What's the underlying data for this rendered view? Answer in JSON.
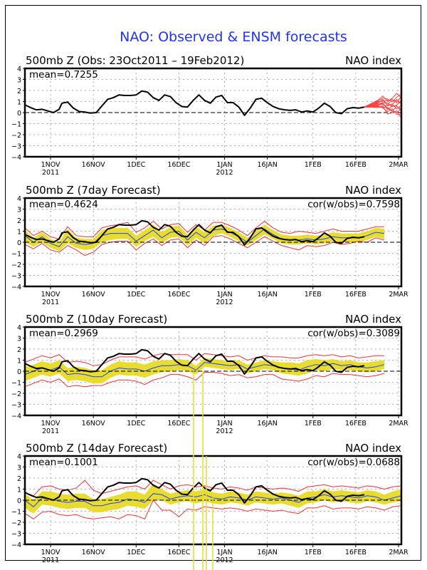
{
  "chart_data": {
    "type": "line",
    "title": "NAO: Observed & ENSM forecasts",
    "x_unit": "days since 23Oct2011",
    "xlim": [
      0,
      132
    ],
    "ylim": [
      -4,
      4
    ],
    "yticks": [
      4,
      3,
      2,
      1,
      0,
      -1,
      -2,
      -3,
      -4
    ],
    "xticks": [
      {
        "day": 9,
        "label": "1NOV",
        "sublabel": "2011"
      },
      {
        "day": 24,
        "label": "16NOV",
        "sublabel": ""
      },
      {
        "day": 39,
        "label": "1DEC",
        "sublabel": ""
      },
      {
        "day": 54,
        "label": "16DEC",
        "sublabel": ""
      },
      {
        "day": 70,
        "label": "1JAN",
        "sublabel": "2012"
      },
      {
        "day": 85,
        "label": "16JAN",
        "sublabel": ""
      },
      {
        "day": 101,
        "label": "1FEB",
        "sublabel": ""
      },
      {
        "day": 116,
        "label": "16FEB",
        "sublabel": ""
      },
      {
        "day": 131,
        "label": "2MAR",
        "sublabel": ""
      }
    ],
    "grid": true,
    "colors": {
      "observed": "#000000",
      "ensemble_mean": "#2244ee",
      "spread": "#e8dc30",
      "bounds": "#ee3333",
      "members": "#ff4444",
      "title": "#2233ee"
    },
    "observed": {
      "x": [
        0,
        2,
        4,
        6,
        8,
        10,
        12,
        13,
        15,
        17,
        19,
        21,
        23,
        25,
        27,
        29,
        31,
        33,
        35,
        37,
        39,
        41,
        43,
        45,
        47,
        49,
        51,
        53,
        55,
        57,
        59,
        61,
        63,
        65,
        67,
        69,
        71,
        73,
        75,
        77,
        79,
        81,
        83,
        85,
        87,
        89,
        91,
        93,
        95,
        97,
        99,
        101,
        103,
        105,
        107,
        109,
        111,
        113,
        115,
        117,
        119
      ],
      "y": [
        0.7,
        0.45,
        0.25,
        0.3,
        0.15,
        0.0,
        0.3,
        0.85,
        0.95,
        0.4,
        0.1,
        0.05,
        -0.05,
        0.0,
        0.6,
        1.2,
        1.35,
        1.6,
        1.55,
        1.55,
        1.6,
        1.95,
        1.85,
        1.35,
        1.1,
        1.6,
        1.45,
        0.9,
        0.55,
        0.5,
        1.1,
        1.6,
        1.1,
        0.85,
        1.4,
        1.55,
        0.9,
        0.9,
        0.5,
        -0.25,
        0.4,
        1.2,
        1.3,
        0.9,
        0.55,
        0.35,
        0.25,
        0.2,
        0.25,
        0.05,
        0.15,
        0.05,
        0.4,
        0.85,
        0.55,
        0.0,
        -0.1,
        0.35,
        0.45,
        0.4,
        0.5
      ]
    },
    "panels": [
      {
        "title": "500mb Z (Obs: 23Oct2011 – 19Feb2012)",
        "right_label": "NAO index",
        "mean_label": "mean=0.7255",
        "cor_label": "",
        "kind": "observed",
        "forecast_members": {
          "start_day": 119,
          "end_day": 132,
          "count": 12,
          "start_value": 0.5,
          "end_range": [
            -0.2,
            1.6
          ]
        }
      },
      {
        "title": "500mb Z (7day Forecast)",
        "right_label": "NAO index",
        "mean_label": "mean=0.4624",
        "cor_label": "cor(w/obs)=0.7598",
        "kind": "forecast",
        "x": [
          0,
          3,
          6,
          9,
          12,
          15,
          18,
          21,
          24,
          27,
          30,
          33,
          36,
          39,
          42,
          45,
          48,
          51,
          54,
          57,
          60,
          63,
          66,
          69,
          72,
          75,
          78,
          81,
          84,
          87,
          90,
          93,
          96,
          99,
          102,
          105,
          108,
          111,
          114,
          117,
          120,
          123,
          126
        ],
        "mean": [
          0.6,
          0.0,
          0.5,
          -0.1,
          -0.4,
          0.5,
          -0.1,
          -0.2,
          -0.1,
          0.6,
          0.8,
          0.8,
          0.8,
          0.1,
          0.6,
          1.1,
          0.4,
          0.9,
          1.0,
          0.2,
          0.9,
          0.4,
          1.1,
          1.2,
          0.9,
          0.5,
          0.0,
          0.6,
          1.2,
          0.7,
          0.3,
          0.2,
          0.2,
          0.3,
          0.2,
          0.3,
          0.5,
          0.4,
          0.4,
          0.4,
          0.6,
          0.9,
          0.8
        ],
        "spread_low": [
          0.0,
          -0.4,
          0.0,
          -0.5,
          -0.8,
          -0.1,
          -0.5,
          -0.7,
          -0.6,
          0.0,
          0.2,
          0.3,
          0.3,
          -0.4,
          0.1,
          0.5,
          -0.1,
          0.4,
          0.5,
          -0.3,
          0.4,
          -0.1,
          0.6,
          0.8,
          0.5,
          0.1,
          -0.3,
          0.2,
          0.7,
          0.3,
          -0.1,
          -0.2,
          -0.2,
          -0.1,
          -0.2,
          -0.1,
          0.1,
          0.0,
          0.0,
          0.0,
          0.2,
          0.5,
          0.3
        ],
        "spread_high": [
          1.1,
          0.4,
          0.9,
          0.3,
          0.0,
          1.2,
          0.4,
          0.3,
          0.3,
          1.1,
          1.3,
          1.3,
          1.3,
          0.6,
          1.1,
          1.6,
          0.9,
          1.4,
          1.5,
          0.7,
          1.4,
          0.9,
          1.5,
          1.6,
          1.3,
          0.9,
          0.4,
          1.0,
          1.6,
          1.1,
          0.7,
          0.6,
          0.6,
          0.7,
          0.6,
          0.7,
          0.9,
          0.8,
          0.8,
          0.8,
          1.0,
          1.3,
          1.2
        ],
        "lower": [
          -0.2,
          -0.6,
          -0.1,
          -0.7,
          -0.9,
          -0.3,
          -0.7,
          -1.2,
          -0.9,
          -0.2,
          0.0,
          0.1,
          0.1,
          -0.7,
          -0.1,
          0.3,
          -0.3,
          0.2,
          0.3,
          -0.5,
          0.2,
          -0.3,
          0.5,
          0.6,
          0.3,
          -0.1,
          -0.5,
          0.0,
          0.5,
          0.1,
          -0.3,
          -0.5,
          -0.7,
          -0.3,
          -0.4,
          -0.3,
          0.0,
          -0.2,
          -0.1,
          0.1,
          0.0,
          0.4,
          0.2
        ],
        "upper": [
          1.3,
          0.6,
          1.0,
          0.5,
          0.3,
          1.4,
          0.6,
          0.5,
          0.5,
          1.3,
          1.5,
          1.6,
          1.8,
          0.9,
          1.3,
          1.9,
          1.2,
          1.6,
          1.7,
          0.9,
          1.6,
          1.1,
          1.8,
          1.8,
          1.5,
          1.1,
          0.6,
          1.3,
          1.9,
          1.3,
          0.9,
          0.8,
          1.0,
          0.9,
          0.8,
          1.0,
          1.2,
          1.0,
          1.0,
          1.0,
          1.2,
          1.4,
          1.4
        ]
      },
      {
        "title": "500mb Z (10day Forecast)",
        "right_label": "NAO index",
        "mean_label": "mean=0.2969",
        "cor_label": "cor(w/obs)=0.3089",
        "kind": "forecast",
        "x": [
          0,
          3,
          6,
          9,
          12,
          15,
          18,
          21,
          24,
          27,
          30,
          33,
          36,
          39,
          42,
          45,
          48,
          51,
          54,
          57,
          60,
          63,
          66,
          69,
          72,
          75,
          78,
          81,
          84,
          87,
          90,
          93,
          96,
          99,
          102,
          105,
          108,
          111,
          114,
          117,
          120,
          123,
          126
        ],
        "mean": [
          -0.3,
          0.0,
          0.3,
          0.1,
          0.4,
          -0.3,
          -0.2,
          -0.3,
          -0.5,
          -0.5,
          0.0,
          0.3,
          0.2,
          0.2,
          0.0,
          0.3,
          0.5,
          0.5,
          0.6,
          0.5,
          0.1,
          0.8,
          0.7,
          0.6,
          0.5,
          0.6,
          0.2,
          0.4,
          0.6,
          0.5,
          0.3,
          0.2,
          0.1,
          0.4,
          0.6,
          0.5,
          0.7,
          0.5,
          0.6,
          0.4,
          0.3,
          0.4,
          0.6
        ],
        "spread_low": [
          -0.9,
          -0.6,
          -0.3,
          -0.5,
          -0.2,
          -0.9,
          -0.8,
          -0.9,
          -1.1,
          -1.1,
          -0.6,
          -0.3,
          -0.4,
          -0.4,
          -0.6,
          -0.3,
          -0.1,
          0.0,
          0.1,
          0.0,
          -0.3,
          0.4,
          0.3,
          0.2,
          0.1,
          0.2,
          -0.2,
          0.0,
          0.2,
          0.1,
          -0.2,
          -0.3,
          -0.4,
          -0.2,
          0.1,
          0.0,
          0.2,
          0.1,
          0.1,
          0.0,
          -0.1,
          0.0,
          0.2
        ],
        "spread_high": [
          0.4,
          0.6,
          0.9,
          0.7,
          1.0,
          0.3,
          0.4,
          0.3,
          0.1,
          0.1,
          0.6,
          0.9,
          0.8,
          0.8,
          0.6,
          0.9,
          1.0,
          1.0,
          1.1,
          1.0,
          0.5,
          1.2,
          1.1,
          1.0,
          0.9,
          1.0,
          0.6,
          0.8,
          1.0,
          0.9,
          0.8,
          0.8,
          0.7,
          1.0,
          1.1,
          1.0,
          1.1,
          0.9,
          1.0,
          0.8,
          0.8,
          0.9,
          1.0
        ],
        "lower": [
          -1.4,
          -1.1,
          -0.8,
          -1.0,
          -0.7,
          -1.4,
          -1.3,
          -1.4,
          -1.3,
          -1.3,
          -1.0,
          -0.8,
          -0.8,
          -0.9,
          -1.2,
          -0.8,
          -0.6,
          -0.3,
          -0.3,
          -0.5,
          -0.8,
          -0.1,
          -0.1,
          -0.2,
          -0.4,
          -0.3,
          -0.6,
          -0.5,
          -0.3,
          -0.3,
          -0.7,
          -0.8,
          -0.9,
          -0.7,
          -0.4,
          -0.5,
          -0.2,
          -0.3,
          -0.3,
          -0.4,
          -0.5,
          -0.4,
          -0.2
        ],
        "upper": [
          0.8,
          1.1,
          1.4,
          1.2,
          1.5,
          0.8,
          0.9,
          0.8,
          0.5,
          0.6,
          1.0,
          1.3,
          1.3,
          1.3,
          1.1,
          1.4,
          1.6,
          1.5,
          1.5,
          1.5,
          1.0,
          1.6,
          1.5,
          1.4,
          1.3,
          1.4,
          1.0,
          1.2,
          1.4,
          1.3,
          1.3,
          1.2,
          1.2,
          1.4,
          1.5,
          1.4,
          1.5,
          1.3,
          1.4,
          1.2,
          1.3,
          1.4,
          1.4
        ]
      },
      {
        "title": "500mb Z (14day Forecast)",
        "right_label": "NAO index",
        "mean_label": "mean=0.1001",
        "cor_label": "cor(w/obs)=0.0688",
        "kind": "forecast",
        "x": [
          0,
          3,
          6,
          9,
          12,
          15,
          18,
          21,
          24,
          27,
          30,
          33,
          36,
          39,
          42,
          45,
          48,
          51,
          54,
          57,
          60,
          63,
          66,
          69,
          72,
          75,
          78,
          81,
          84,
          87,
          90,
          93,
          96,
          99,
          102,
          105,
          108,
          111,
          114,
          117,
          120,
          123,
          126,
          129,
          132
        ],
        "mean": [
          0.0,
          -0.6,
          0.2,
          0.1,
          -0.1,
          -0.2,
          -0.1,
          -0.1,
          -0.5,
          -0.5,
          -0.3,
          -0.2,
          0.1,
          0.0,
          -0.2,
          0.6,
          0.5,
          0.1,
          0.3,
          0.4,
          0.3,
          0.5,
          0.2,
          0.1,
          0.3,
          0.2,
          0.0,
          0.3,
          0.2,
          0.1,
          0.2,
          0.0,
          -0.2,
          0.2,
          0.3,
          0.5,
          0.3,
          0.4,
          0.3,
          0.2,
          0.4,
          0.3,
          0.0,
          0.2,
          0.4
        ],
        "spread_low": [
          -0.7,
          -1.2,
          -0.4,
          -0.5,
          -0.7,
          -0.8,
          -0.7,
          -0.7,
          -1.1,
          -1.1,
          -0.9,
          -0.8,
          -0.5,
          -0.6,
          -0.8,
          0.0,
          0.0,
          -0.4,
          -0.2,
          -0.1,
          -0.3,
          -0.1,
          -0.3,
          -0.4,
          -0.2,
          -0.3,
          -0.5,
          -0.2,
          -0.3,
          -0.4,
          -0.3,
          -0.5,
          -0.7,
          -0.3,
          -0.2,
          0.0,
          -0.2,
          -0.1,
          -0.2,
          -0.3,
          -0.1,
          -0.2,
          -0.4,
          -0.2,
          -0.1
        ],
        "spread_high": [
          0.6,
          0.0,
          0.8,
          0.8,
          0.6,
          0.5,
          0.6,
          0.6,
          0.1,
          0.1,
          0.3,
          0.5,
          0.8,
          0.8,
          0.5,
          1.5,
          1.0,
          0.6,
          0.8,
          0.9,
          0.8,
          1.0,
          0.7,
          0.6,
          0.8,
          0.7,
          0.5,
          0.8,
          0.7,
          0.6,
          0.7,
          0.6,
          0.4,
          0.8,
          0.8,
          1.0,
          0.8,
          0.9,
          0.8,
          0.7,
          0.9,
          0.8,
          0.5,
          0.8,
          1.0
        ],
        "lower": [
          -1.2,
          -1.7,
          -1.1,
          -1.0,
          -1.3,
          -1.4,
          -1.3,
          -1.6,
          -1.7,
          -1.6,
          -1.5,
          -1.7,
          -1.3,
          -1.4,
          -1.7,
          0.0,
          -0.9,
          -0.9,
          -1.5,
          -0.8,
          -0.9,
          -0.6,
          -0.7,
          -0.8,
          -0.7,
          -0.8,
          -1.0,
          -0.8,
          -0.9,
          -1.0,
          -0.9,
          -1.1,
          -1.2,
          -0.7,
          -0.7,
          -0.5,
          -0.8,
          -0.7,
          -0.7,
          -0.8,
          -0.6,
          -0.7,
          -0.9,
          -0.6,
          -0.5
        ],
        "upper": [
          0.7,
          0.4,
          1.2,
          1.3,
          1.0,
          0.9,
          1.1,
          1.8,
          0.9,
          0.6,
          0.8,
          1.0,
          1.2,
          1.3,
          1.0,
          1.8,
          1.4,
          1.0,
          1.3,
          1.4,
          1.2,
          1.3,
          1.1,
          1.0,
          1.2,
          1.1,
          0.9,
          1.2,
          1.1,
          1.0,
          1.1,
          1.0,
          0.8,
          1.2,
          1.3,
          1.4,
          1.2,
          1.3,
          1.2,
          1.1,
          1.3,
          1.2,
          1.0,
          1.2,
          1.3
        ]
      }
    ]
  }
}
